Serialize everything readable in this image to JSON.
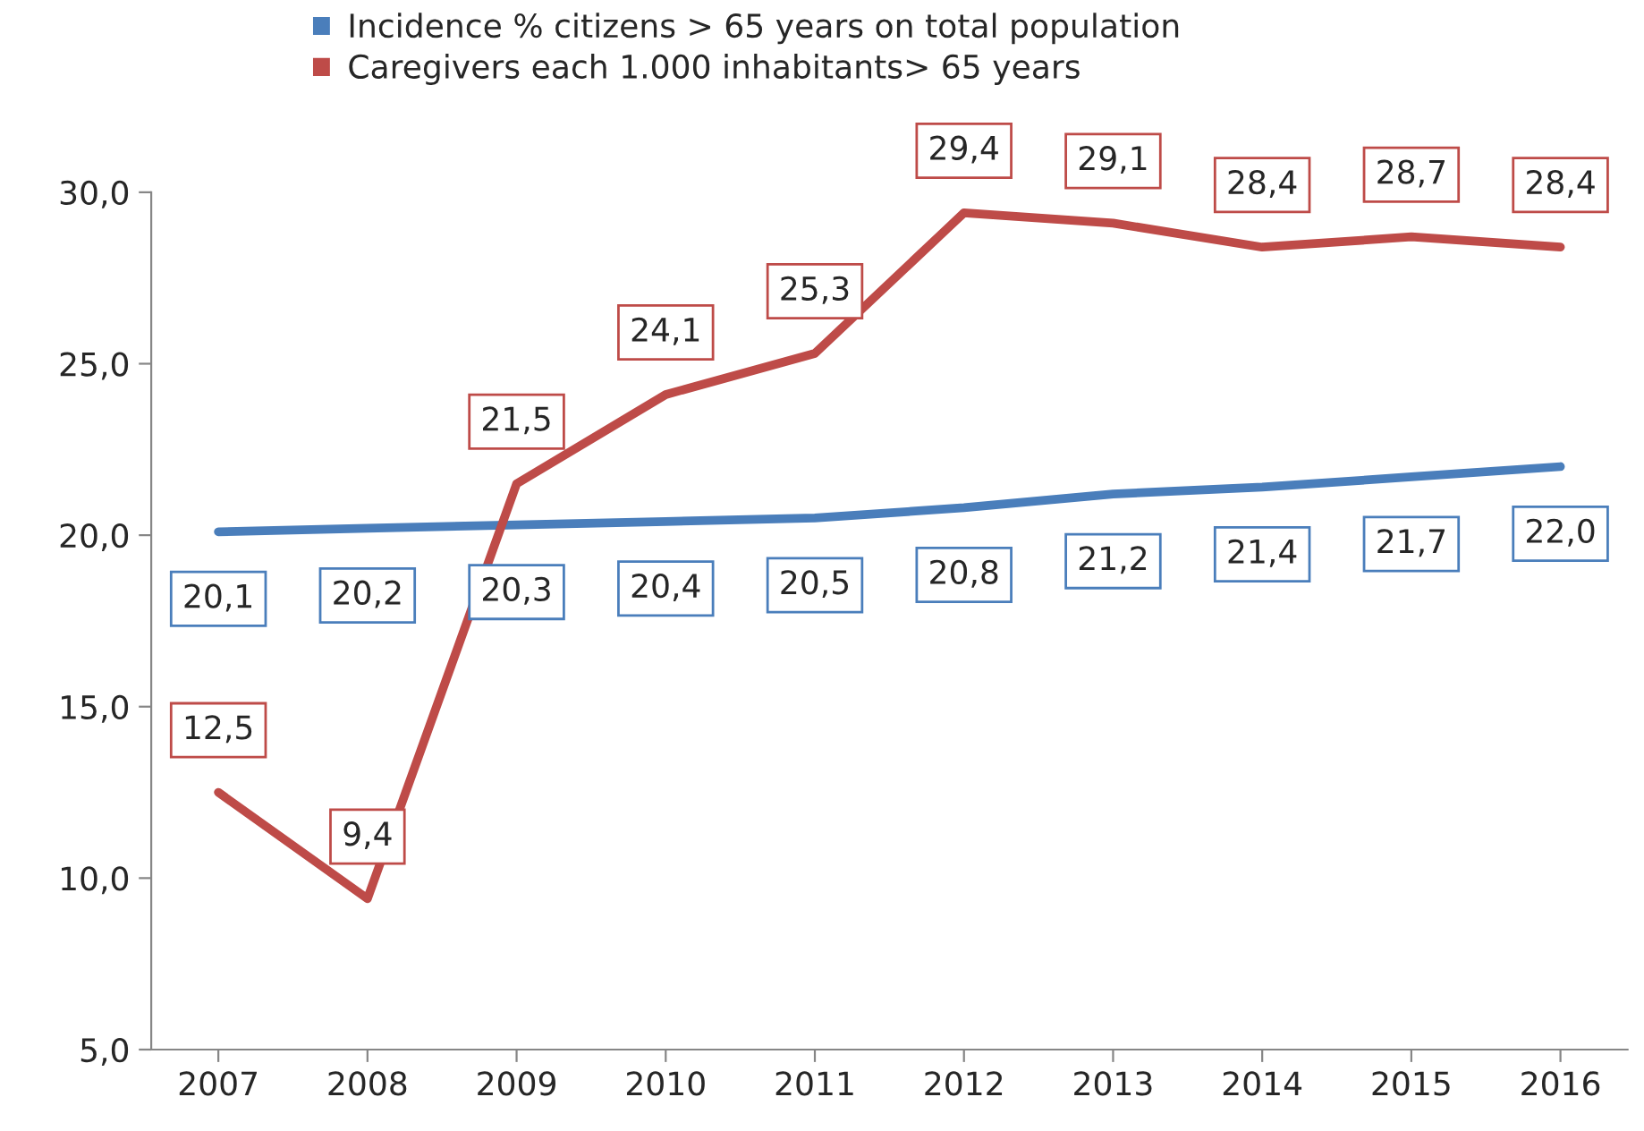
{
  "chart_data": {
    "type": "line",
    "categories": [
      "2007",
      "2008",
      "2009",
      "2010",
      "2011",
      "2012",
      "2013",
      "2014",
      "2015",
      "2016"
    ],
    "series": [
      {
        "name": "Incidence % citizens > 65 years on total population",
        "color": "#4a7ebb",
        "values": [
          20.1,
          20.2,
          20.3,
          20.4,
          20.5,
          20.8,
          21.2,
          21.4,
          21.7,
          22.0
        ],
        "value_labels": [
          "20,1",
          "20,2",
          "20,3",
          "20,4",
          "20,5",
          "20,8",
          "21,2",
          "21,4",
          "21,7",
          "22,0"
        ]
      },
      {
        "name": "Caregivers each 1.000 inhabitants> 65 years",
        "color": "#be4b48",
        "values": [
          12.5,
          9.4,
          21.5,
          24.1,
          25.3,
          29.4,
          29.1,
          28.4,
          28.7,
          28.4
        ],
        "value_labels": [
          "12,5",
          "9,4",
          "21,5",
          "24,1",
          "25,3",
          "29,4",
          "29,1",
          "28,4",
          "28,7",
          "28,4"
        ]
      }
    ],
    "ylim": [
      5,
      30
    ],
    "yticks": [
      {
        "value": 5,
        "label": "5,0"
      },
      {
        "value": 10,
        "label": "10,0"
      },
      {
        "value": 15,
        "label": "15,0"
      },
      {
        "value": 20,
        "label": "20,0"
      },
      {
        "value": 25,
        "label": "25,0"
      },
      {
        "value": 30,
        "label": "30,0"
      }
    ],
    "grid": false,
    "legend": "top",
    "marker": "none",
    "line_style": "solid"
  }
}
